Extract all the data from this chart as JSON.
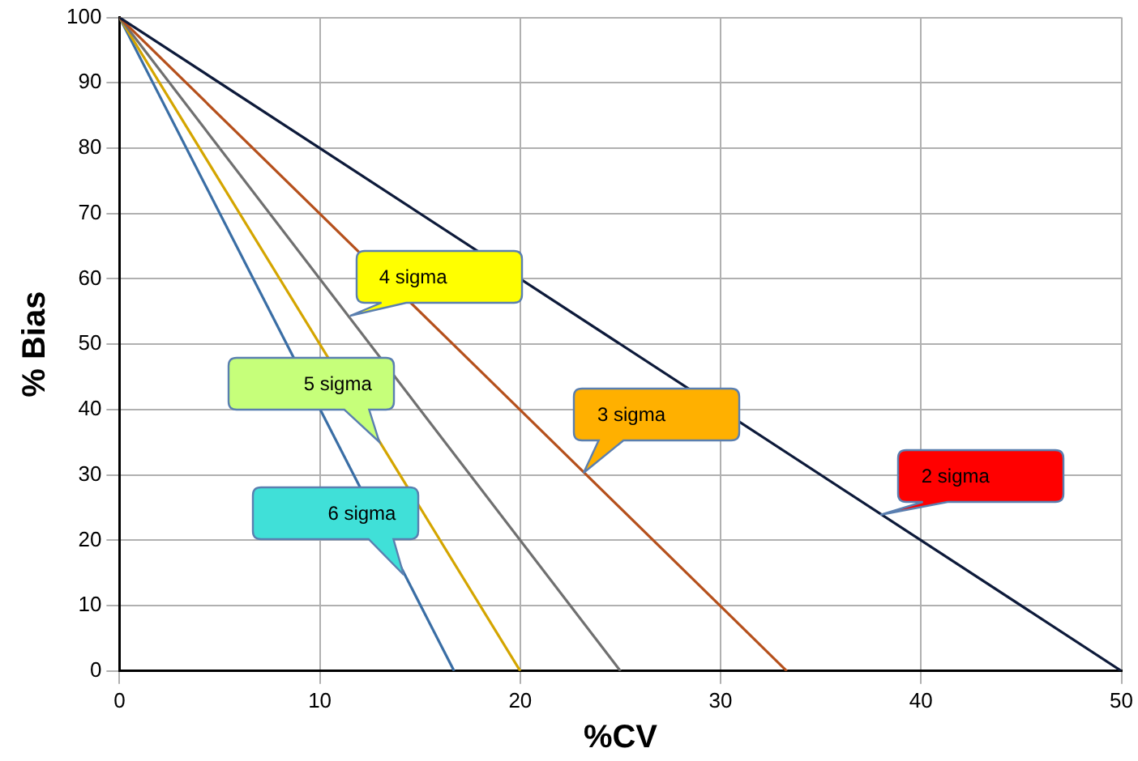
{
  "chart_data": {
    "type": "line",
    "xlabel": "%CV",
    "ylabel": "% Bias",
    "series": [
      {
        "x": [
          0,
          50
        ],
        "values": [
          100,
          0
        ],
        "color": "#0d1a3a"
      },
      {
        "x": [
          0,
          33.3
        ],
        "values": [
          100,
          0
        ],
        "color": "#b5501c"
      },
      {
        "x": [
          0,
          25
        ],
        "values": [
          100,
          0
        ],
        "color": "#707070"
      },
      {
        "x": [
          0,
          20
        ],
        "values": [
          100,
          0
        ],
        "color": "#d4a500"
      },
      {
        "x": [
          0,
          16.7
        ],
        "values": [
          100,
          0
        ],
        "color": "#3a6ea5"
      }
    ],
    "annotations": [
      {
        "text": "2 sigma",
        "x": 38,
        "y": 24
      },
      {
        "text": "3 sigma",
        "x": 23.2,
        "y": 30.4
      },
      {
        "text": "4 sigma",
        "x": 11.5,
        "y": 54.4
      },
      {
        "text": "5 sigma",
        "x": 13,
        "y": 35
      },
      {
        "text": "6 sigma",
        "x": 14.2,
        "y": 14.8
      }
    ],
    "xlim": [
      0,
      50
    ],
    "xticks": [
      0,
      10,
      20,
      30,
      40,
      50
    ],
    "ylim": [
      0,
      100
    ],
    "yticks": [
      0,
      10,
      20,
      30,
      40,
      50,
      60,
      70,
      80,
      90,
      100
    ],
    "grid": true,
    "legend": false,
    "marker": "none",
    "line_style": "solid"
  }
}
